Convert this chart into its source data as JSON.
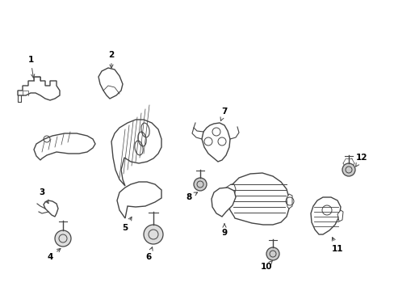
{
  "bg_color": "#ffffff",
  "line_color": "#444444",
  "text_color": "#000000",
  "fig_width": 4.89,
  "fig_height": 3.6,
  "dpi": 100
}
